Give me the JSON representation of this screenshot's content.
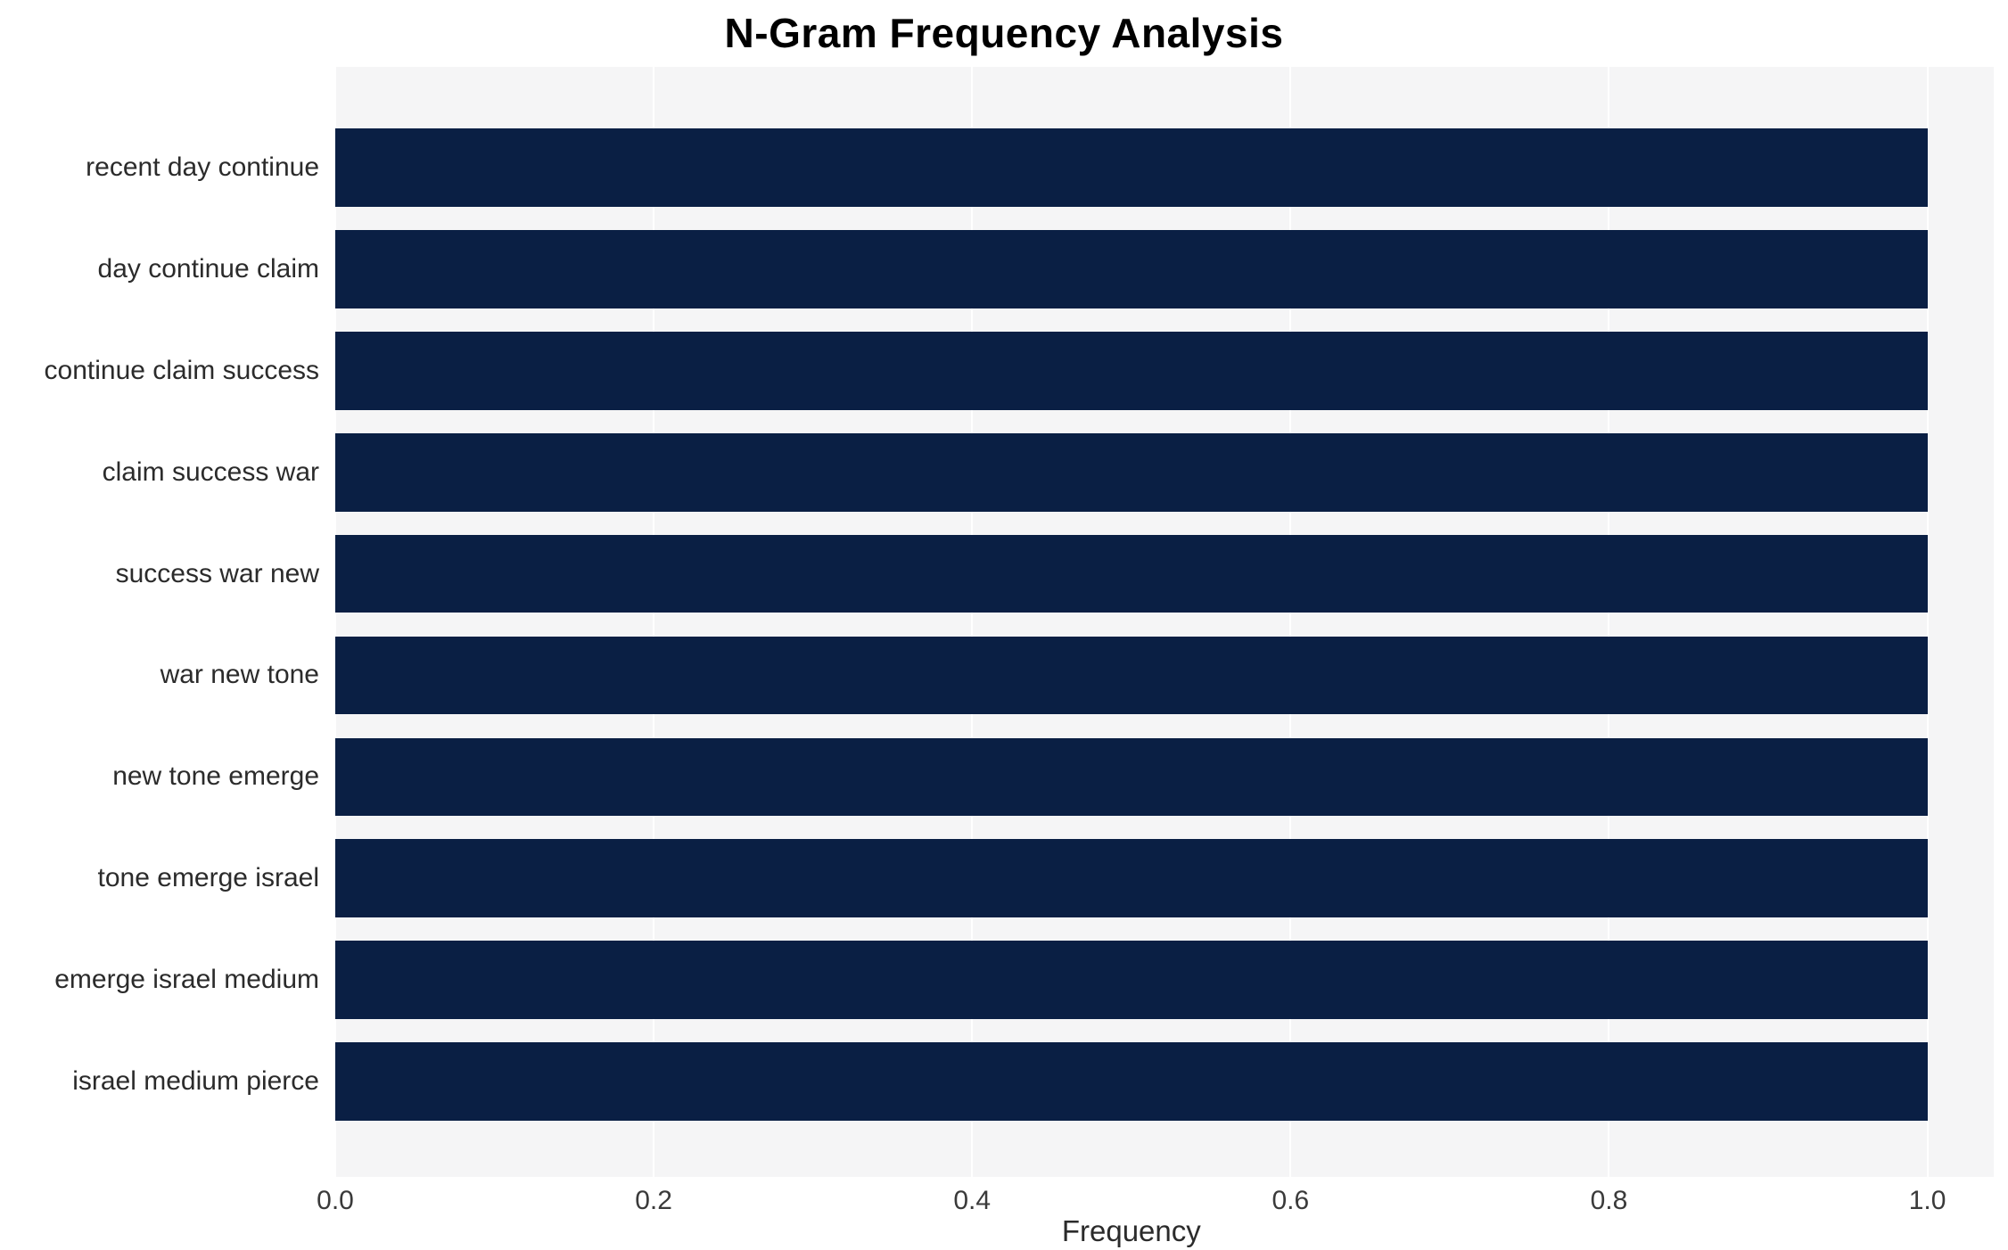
{
  "chart": {
    "title": "N-Gram Frequency Analysis",
    "xlabel": "Frequency"
  },
  "chart_data": {
    "type": "bar",
    "orientation": "horizontal",
    "title": "N-Gram Frequency Analysis",
    "xlabel": "Frequency",
    "ylabel": "",
    "categories": [
      "recent day continue",
      "day continue claim",
      "continue claim success",
      "claim success war",
      "success war new",
      "war new tone",
      "new tone emerge",
      "tone emerge israel",
      "emerge israel medium",
      "israel medium pierce"
    ],
    "values": [
      1.0,
      1.0,
      1.0,
      1.0,
      1.0,
      1.0,
      1.0,
      1.0,
      1.0,
      1.0
    ],
    "xlim": [
      0.0,
      1.04
    ],
    "xticks": [
      0.0,
      0.2,
      0.4,
      0.6,
      0.8,
      1.0
    ],
    "xtick_labels": [
      "0.0",
      "0.2",
      "0.4",
      "0.6",
      "0.8",
      "1.0"
    ],
    "grid": true,
    "legend": "none",
    "colors": {
      "bar": "#0a1f44",
      "plot_background": "#f5f5f6",
      "gridline": "#ffffff",
      "title_text": "#000000",
      "axis_text": "#2b2b2b"
    }
  }
}
